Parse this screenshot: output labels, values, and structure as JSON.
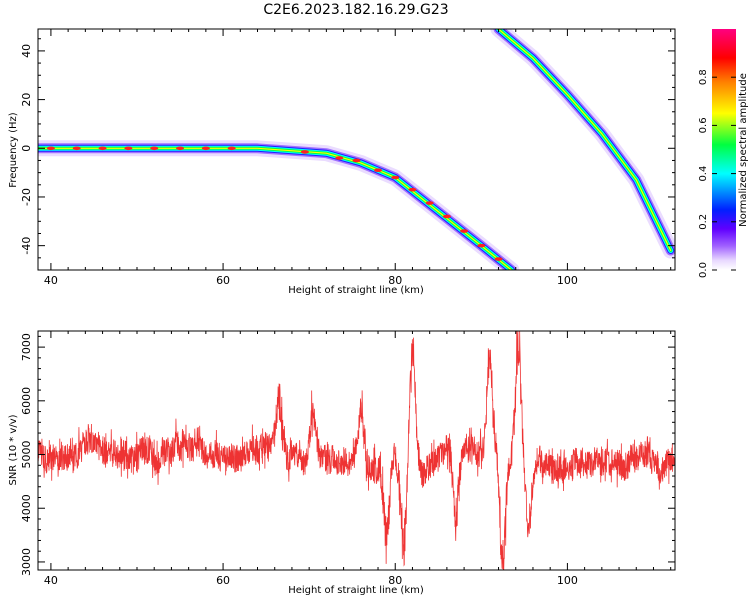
{
  "title": "C2E6.2023.182.16.29.G23",
  "chart_data": [
    {
      "type": "heatmap",
      "xlabel": "Height of straight line (km)",
      "ylabel": "Frequency (Hz)",
      "xlim": [
        38.5,
        112.5
      ],
      "ylim": [
        -50,
        49
      ],
      "xticks": [
        "40",
        "60",
        "80",
        "100"
      ],
      "yticks": [
        "-40",
        "-20",
        "0",
        "20",
        "40"
      ],
      "colorbar": {
        "label": "Normalized spectral amplitude",
        "range": [
          0,
          1
        ],
        "ticks": [
          "0.0",
          "0.2",
          "0.4",
          "0.6",
          "0.8"
        ],
        "colors": [
          "#ffffff",
          "#c8a0ff",
          "#7f00ff",
          "#0000ff",
          "#00ffff",
          "#00ff00",
          "#ffff00",
          "#ff8000",
          "#ff0000",
          "#ff0080"
        ]
      },
      "ridges": [
        {
          "points": [
            [
              38.5,
              0
            ],
            [
              64,
              0
            ],
            [
              72,
              -2
            ],
            [
              76,
              -6
            ],
            [
              80,
              -12
            ],
            [
              85,
              -26
            ],
            [
              90,
              -40
            ],
            [
              93.5,
              -50
            ]
          ]
        },
        {
          "points": [
            [
              92,
              49
            ],
            [
              96,
              37
            ],
            [
              100,
              22
            ],
            [
              104,
              6
            ],
            [
              108,
              -13
            ],
            [
              112,
              -42
            ]
          ]
        }
      ]
    },
    {
      "type": "line",
      "xlabel": "Height of straight line (km)",
      "ylabel": "SNR (10 * v/v)",
      "xlim": [
        38.5,
        112.5
      ],
      "ylim": [
        2850,
        7300
      ],
      "xticks": [
        "40",
        "60",
        "80",
        "100"
      ],
      "yticks": [
        "3000",
        "4000",
        "5000",
        "6000",
        "7000"
      ],
      "color": "#ee3333",
      "baseline": 5000,
      "features": [
        {
          "x": 66.5,
          "y": 6000
        },
        {
          "x": 70.5,
          "y": 6050
        },
        {
          "x": 76,
          "y": 5950
        },
        {
          "x": 79,
          "y": 3350
        },
        {
          "x": 81,
          "y": 3300
        },
        {
          "x": 82,
          "y": 7100
        },
        {
          "x": 87,
          "y": 3550
        },
        {
          "x": 91,
          "y": 6900
        },
        {
          "x": 92.5,
          "y": 2850
        },
        {
          "x": 94.3,
          "y": 7250
        },
        {
          "x": 95.5,
          "y": 3700
        }
      ]
    }
  ]
}
